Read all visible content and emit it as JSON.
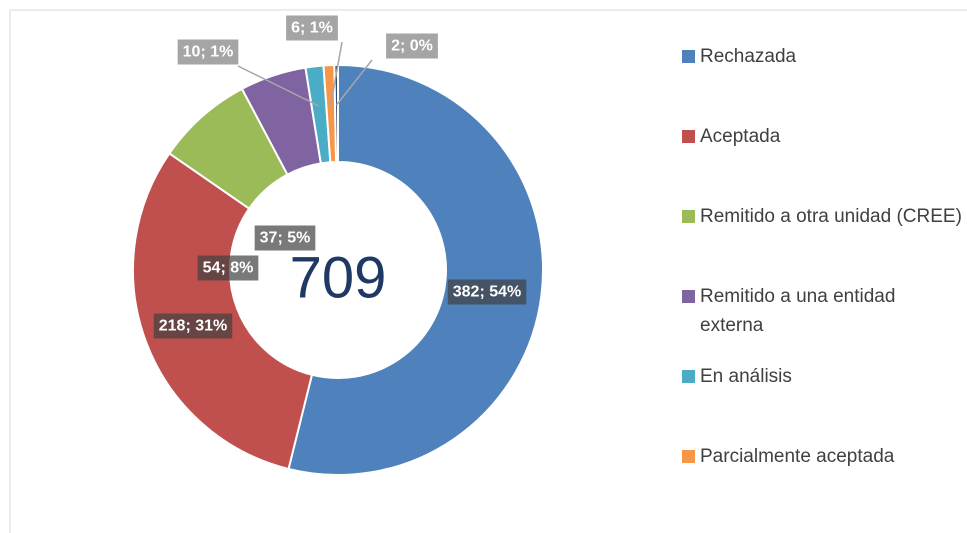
{
  "chart_data": {
    "type": "donut",
    "categories": [
      "Rechazada",
      "Aceptada",
      "Remitido a otra unidad (CREE)",
      "Remitido a una entidad externa",
      "En análisis",
      "Parcialmente aceptada",
      null
    ],
    "values": [
      382,
      218,
      54,
      37,
      10,
      6,
      2
    ],
    "value_labels": [
      "382; 54%",
      "218; 31%",
      "54; 8%",
      "37; 5%",
      "10; 1%",
      "6; 1%",
      "2; 0%"
    ],
    "colors": [
      "#4f81bd",
      "#c0504d",
      "#9bbb59",
      "#8064a2",
      "#4bacc6",
      "#f79646",
      "#2c4d75"
    ],
    "total": 709
  }
}
